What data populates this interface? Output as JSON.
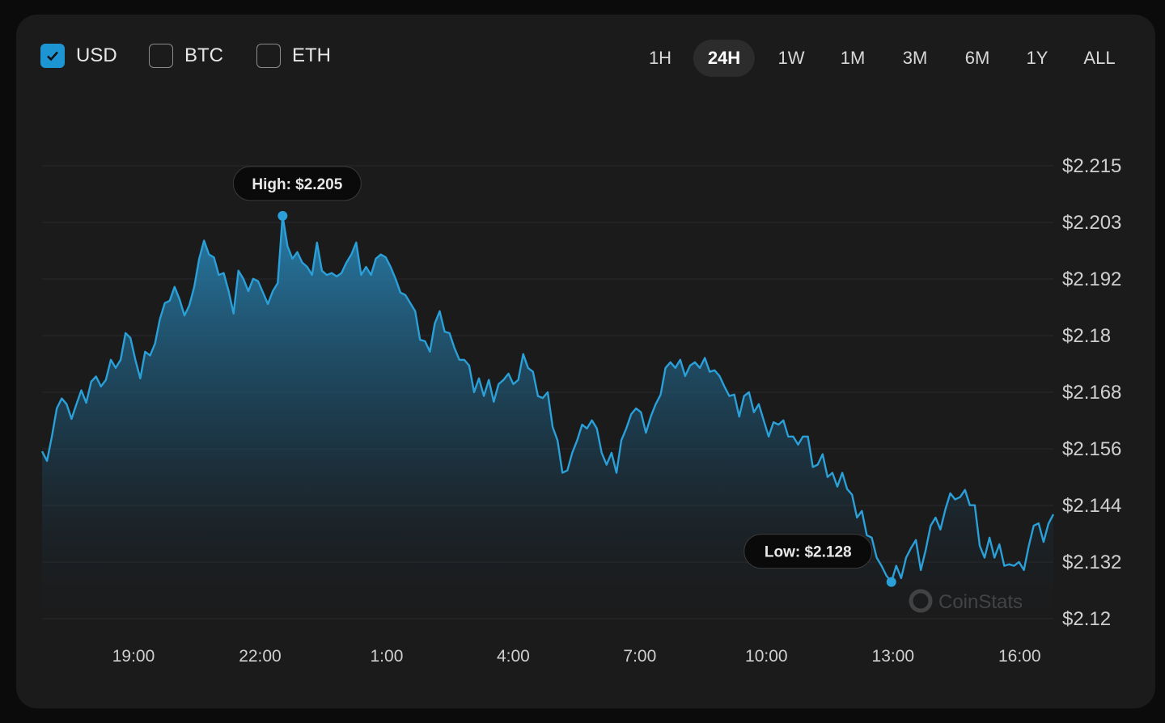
{
  "currencies": [
    {
      "label": "USD",
      "checked": true
    },
    {
      "label": "BTC",
      "checked": false
    },
    {
      "label": "ETH",
      "checked": false
    }
  ],
  "ranges": [
    {
      "label": "1H",
      "active": false
    },
    {
      "label": "24H",
      "active": true
    },
    {
      "label": "1W",
      "active": false
    },
    {
      "label": "1M",
      "active": false
    },
    {
      "label": "3M",
      "active": false
    },
    {
      "label": "6M",
      "active": false
    },
    {
      "label": "1Y",
      "active": false
    },
    {
      "label": "ALL",
      "active": false
    }
  ],
  "colors": {
    "accent": "#1e95d3",
    "line": "#2a9fd8",
    "background": "#1b1b1c",
    "text": "#d0d0d0"
  },
  "watermark": "CoinStats",
  "chart_data": {
    "type": "area",
    "x_range": [
      "16:50",
      "16:48"
    ],
    "ylim": [
      2.12,
      2.215
    ],
    "y_ticks": [
      "$2.215",
      "$2.203",
      "$2.192",
      "$2.18",
      "$2.168",
      "$2.156",
      "$2.144",
      "$2.132",
      "$2.12"
    ],
    "x_ticks": [
      "19:00",
      "22:00",
      "1:00",
      "4:00",
      "7:00",
      "10:00",
      "13:00",
      "16:00"
    ],
    "grid": true,
    "high_label": "High: $2.205",
    "low_label": "Low: $2.128",
    "values": [
      2.1551,
      2.1531,
      2.1582,
      2.1641,
      2.1662,
      2.165,
      2.1619,
      2.165,
      2.1679,
      2.1653,
      2.1697,
      2.1708,
      2.1687,
      2.1701,
      2.1743,
      2.1726,
      2.1743,
      2.1799,
      2.1789,
      2.1743,
      2.1704,
      2.176,
      2.1752,
      2.1777,
      2.1828,
      2.1862,
      2.1867,
      2.1896,
      2.187,
      2.1836,
      2.1857,
      2.1896,
      2.1955,
      2.1993,
      2.1964,
      2.1958,
      2.1921,
      2.1925,
      2.1887,
      2.184,
      2.193,
      2.1913,
      2.1887,
      2.1913,
      2.1908,
      2.1884,
      2.186,
      2.1887,
      2.1904,
      2.2045,
      2.1981,
      2.1955,
      2.1969,
      2.1947,
      2.1938,
      2.1921,
      2.1989,
      2.193,
      2.1921,
      2.1925,
      2.1918,
      2.1925,
      2.1947,
      2.1964,
      2.1989,
      2.1921,
      2.1938,
      2.1921,
      2.1955,
      2.1964,
      2.1958,
      2.1938,
      2.1913,
      2.1884,
      2.1879,
      2.1862,
      2.1845,
      2.1785,
      2.1782,
      2.176,
      2.1819,
      2.1845,
      2.1802,
      2.1799,
      2.1768,
      2.1743,
      2.1743,
      2.1731,
      2.1675,
      2.1704,
      2.1667,
      2.1701,
      2.1655,
      2.1692,
      2.1701,
      2.1714,
      2.1692,
      2.1701,
      2.1755,
      2.1726,
      2.1718,
      2.1667,
      2.1663,
      2.1675,
      2.1602,
      2.1574,
      2.1506,
      2.1511,
      2.1548,
      2.1574,
      2.1607,
      2.1599,
      2.1616,
      2.1599,
      2.1548,
      2.1523,
      2.1548,
      2.1506,
      2.1574,
      2.1599,
      2.1629,
      2.1641,
      2.1633,
      2.159,
      2.1624,
      2.165,
      2.167,
      2.1726,
      2.1738,
      2.1726,
      2.1743,
      2.1709,
      2.1731,
      2.1738,
      2.1726,
      2.1747,
      2.1718,
      2.1721,
      2.1709,
      2.1687,
      2.1667,
      2.167,
      2.1624,
      2.1667,
      2.1675,
      2.1633,
      2.165,
      2.1616,
      2.1582,
      2.1612,
      2.1607,
      2.1616,
      2.1582,
      2.1582,
      2.1565,
      2.1582,
      2.1582,
      2.1518,
      2.1523,
      2.1545,
      2.1497,
      2.1506,
      2.1477,
      2.1506,
      2.1472,
      2.146,
      2.1412,
      2.1426,
      2.1375,
      2.137,
      2.1328,
      2.1311,
      2.129,
      2.1277,
      2.1311,
      2.1285,
      2.1328,
      2.1348,
      2.1365,
      2.1302,
      2.1344,
      2.1395,
      2.1412,
      2.1387,
      2.1429,
      2.1463,
      2.145,
      2.1455,
      2.147,
      2.1438,
      2.1438,
      2.1353,
      2.1328,
      2.137,
      2.1328,
      2.1356,
      2.1311,
      2.1314,
      2.1311,
      2.1319,
      2.1302,
      2.1353,
      2.1395,
      2.14,
      2.1361,
      2.1399,
      2.1419
    ]
  }
}
